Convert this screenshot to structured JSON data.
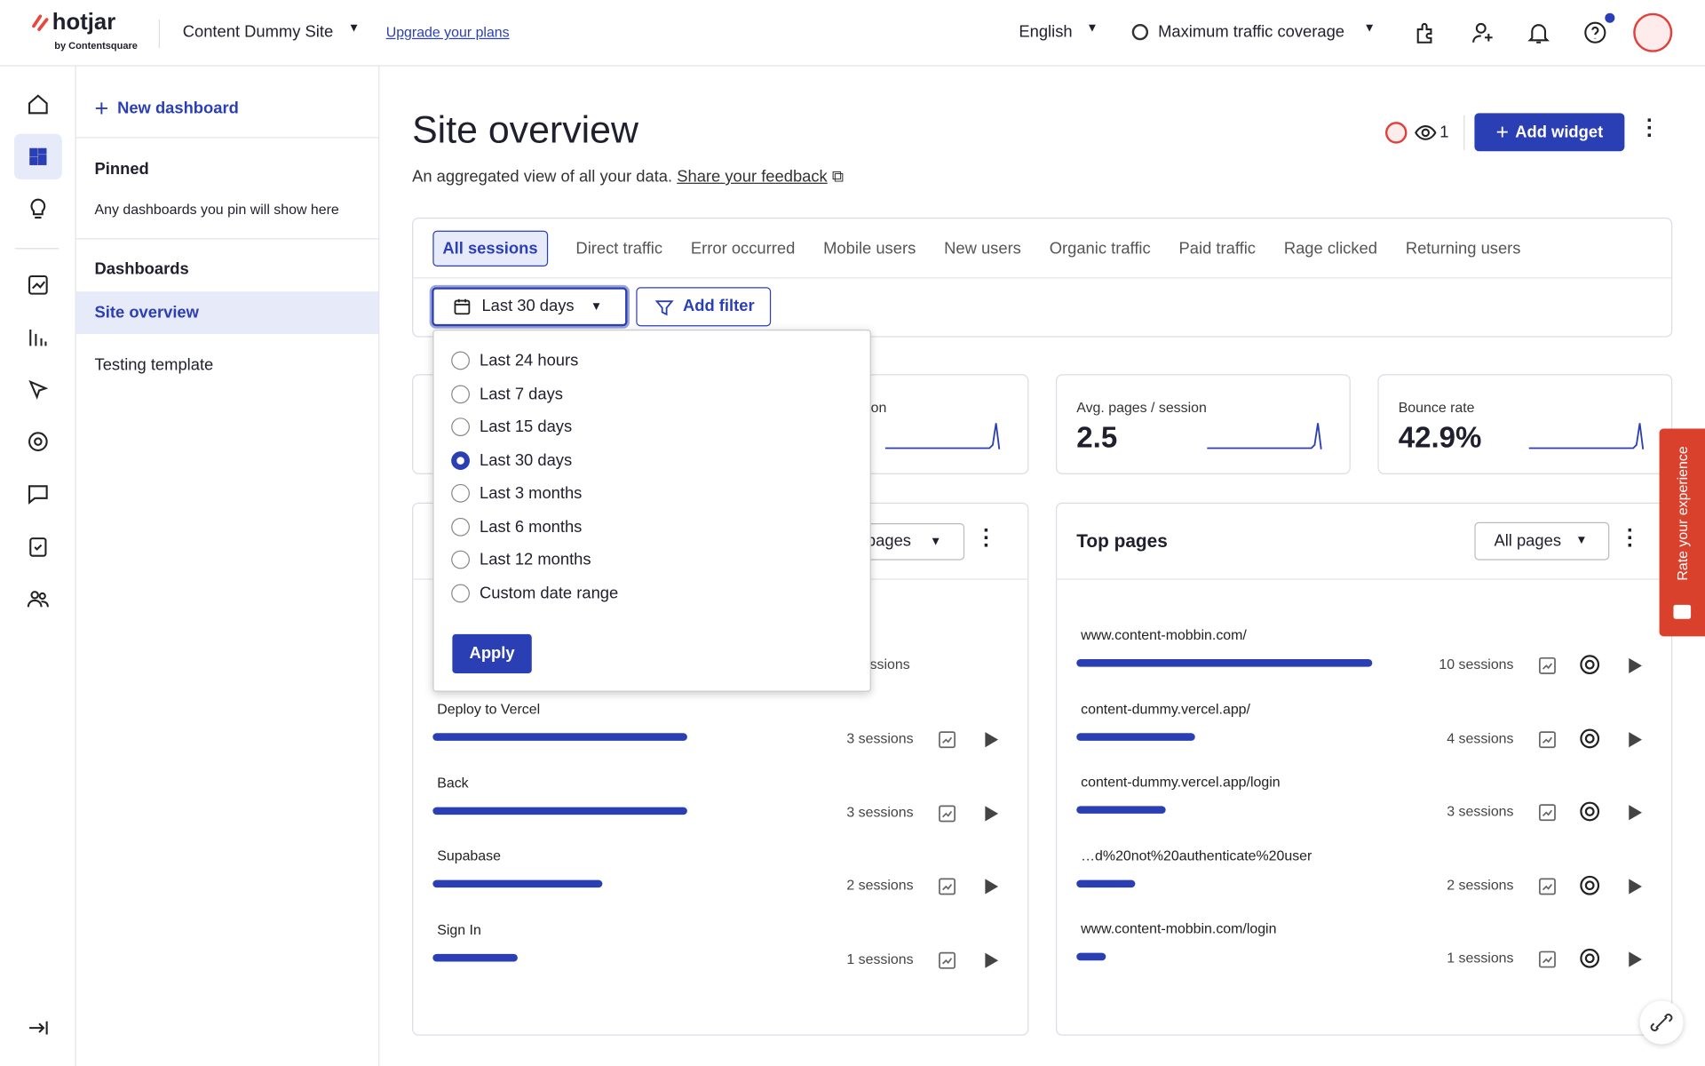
{
  "header": {
    "logo": "hotjar",
    "logo_sub": "by Contentsquare",
    "site": "Content Dummy Site",
    "upgrade": "Upgrade your plans",
    "language": "English",
    "coverage": "Maximum traffic coverage"
  },
  "sidebar": {
    "new_dashboard": "New dashboard",
    "pinned": "Pinned",
    "pinned_hint": "Any dashboards you pin will show here",
    "dashboards": "Dashboards",
    "items": [
      "Site overview",
      "Testing template"
    ]
  },
  "page": {
    "title": "Site overview",
    "subtitle": "An aggregated view of all your data.",
    "feedback": "Share your feedback",
    "viewers": "1",
    "add_widget": "Add widget"
  },
  "segments": [
    "All sessions",
    "Direct traffic",
    "Error occurred",
    "Mobile users",
    "New users",
    "Organic traffic",
    "Paid traffic",
    "Rage clicked",
    "Returning users"
  ],
  "filters": {
    "date": "Last 30 days",
    "add_filter": "Add filter"
  },
  "date_menu": {
    "options": [
      "Last 24 hours",
      "Last 7 days",
      "Last 15 days",
      "Last 30 days",
      "Last 3 months",
      "Last 6 months",
      "Last 12 months",
      "Custom date range"
    ],
    "apply": "Apply"
  },
  "metrics": {
    "partial_label": "ion",
    "cards": [
      {
        "label": "Avg. pages / session",
        "value": "2.5"
      },
      {
        "label": "Bounce rate",
        "value": "42.9%"
      }
    ]
  },
  "left_widget": {
    "partial_select": "pages",
    "partial_sessions": "ssions",
    "rows": [
      {
        "label": "Deploy to Vercel",
        "sessions": 3,
        "sessions_label": "3 sessions"
      },
      {
        "label": "Back",
        "sessions": 3,
        "sessions_label": "3 sessions"
      },
      {
        "label": "Supabase",
        "sessions": 2,
        "sessions_label": "2 sessions"
      },
      {
        "label": "Sign In",
        "sessions": 1,
        "sessions_label": "1 sessions"
      }
    ]
  },
  "top_pages": {
    "title": "Top pages",
    "select": "All pages",
    "rows": [
      {
        "url": "www.content-mobbin.com/",
        "sessions": 10,
        "sessions_label": "10 sessions"
      },
      {
        "url": "content-dummy.vercel.app/",
        "sessions": 4,
        "sessions_label": "4 sessions"
      },
      {
        "url": "content-dummy.vercel.app/login",
        "sessions": 3,
        "sessions_label": "3 sessions"
      },
      {
        "url": "…d%20not%20authenticate%20user",
        "sessions": 2,
        "sessions_label": "2 sessions"
      },
      {
        "url": "www.content-mobbin.com/login",
        "sessions": 1,
        "sessions_label": "1 sessions"
      }
    ]
  },
  "rate_tab": "Rate your experience"
}
